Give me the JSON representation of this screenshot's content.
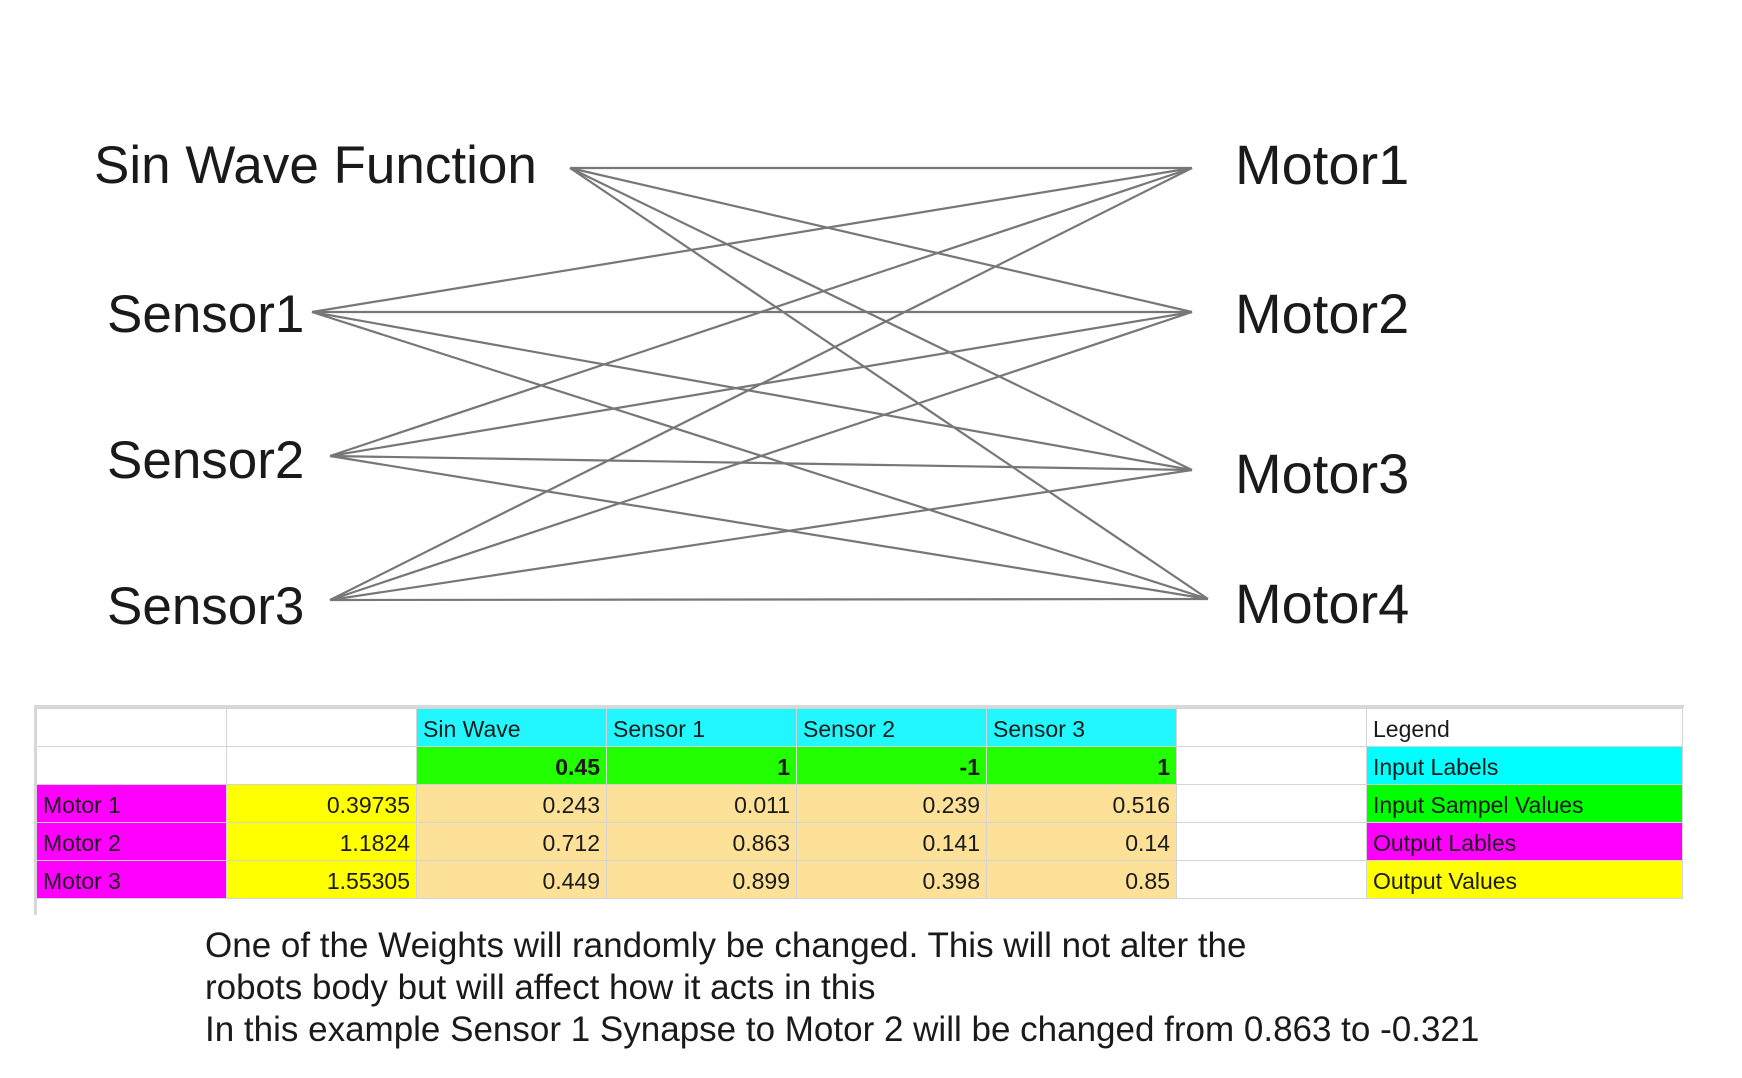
{
  "diagram": {
    "inputs": [
      "Sin Wave Function",
      "Sensor1",
      "Sensor2",
      "Sensor3"
    ],
    "outputs": [
      "Motor1",
      "Motor2",
      "Motor3",
      "Motor4"
    ],
    "line_color": "#777777"
  },
  "sheet": {
    "column_headers": [
      "Sin Wave",
      "Sensor 1",
      "Sensor 2",
      "Sensor 3"
    ],
    "sample_values": [
      "0.45",
      "1",
      "-1",
      "1"
    ],
    "rows": [
      {
        "label": "Motor 1",
        "output": "0.39735",
        "weights": [
          "0.243",
          "0.011",
          "0.239",
          "0.516"
        ]
      },
      {
        "label": "Motor 2",
        "output": "1.1824",
        "weights": [
          "0.712",
          "0.863",
          "0.141",
          "0.14"
        ]
      },
      {
        "label": "Motor 3",
        "output": "1.55305",
        "weights": [
          "0.449",
          "0.899",
          "0.398",
          "0.85"
        ]
      }
    ],
    "legend": {
      "title": "Legend",
      "items": [
        {
          "label": "Input Labels",
          "color": "#00ffff"
        },
        {
          "label": "Input Sampel Values",
          "color": "#00ff00"
        },
        {
          "label": "Output Lables",
          "color": "#ff00ff"
        },
        {
          "label": "Output Values",
          "color": "#ffff00"
        }
      ]
    },
    "colors": {
      "input_labels": "#22f7ff",
      "sample_values": "#22ff00",
      "output_labels": "#ff00ff",
      "output_values": "#ffff00",
      "weights": "#fde199"
    }
  },
  "caption": [
    "One of the Weights will randomly be changed. This will not alter the",
    "robots body but will affect how it acts in this",
    "In this example Sensor 1 Synapse to Motor 2 will be changed from 0.863 to -0.321"
  ]
}
